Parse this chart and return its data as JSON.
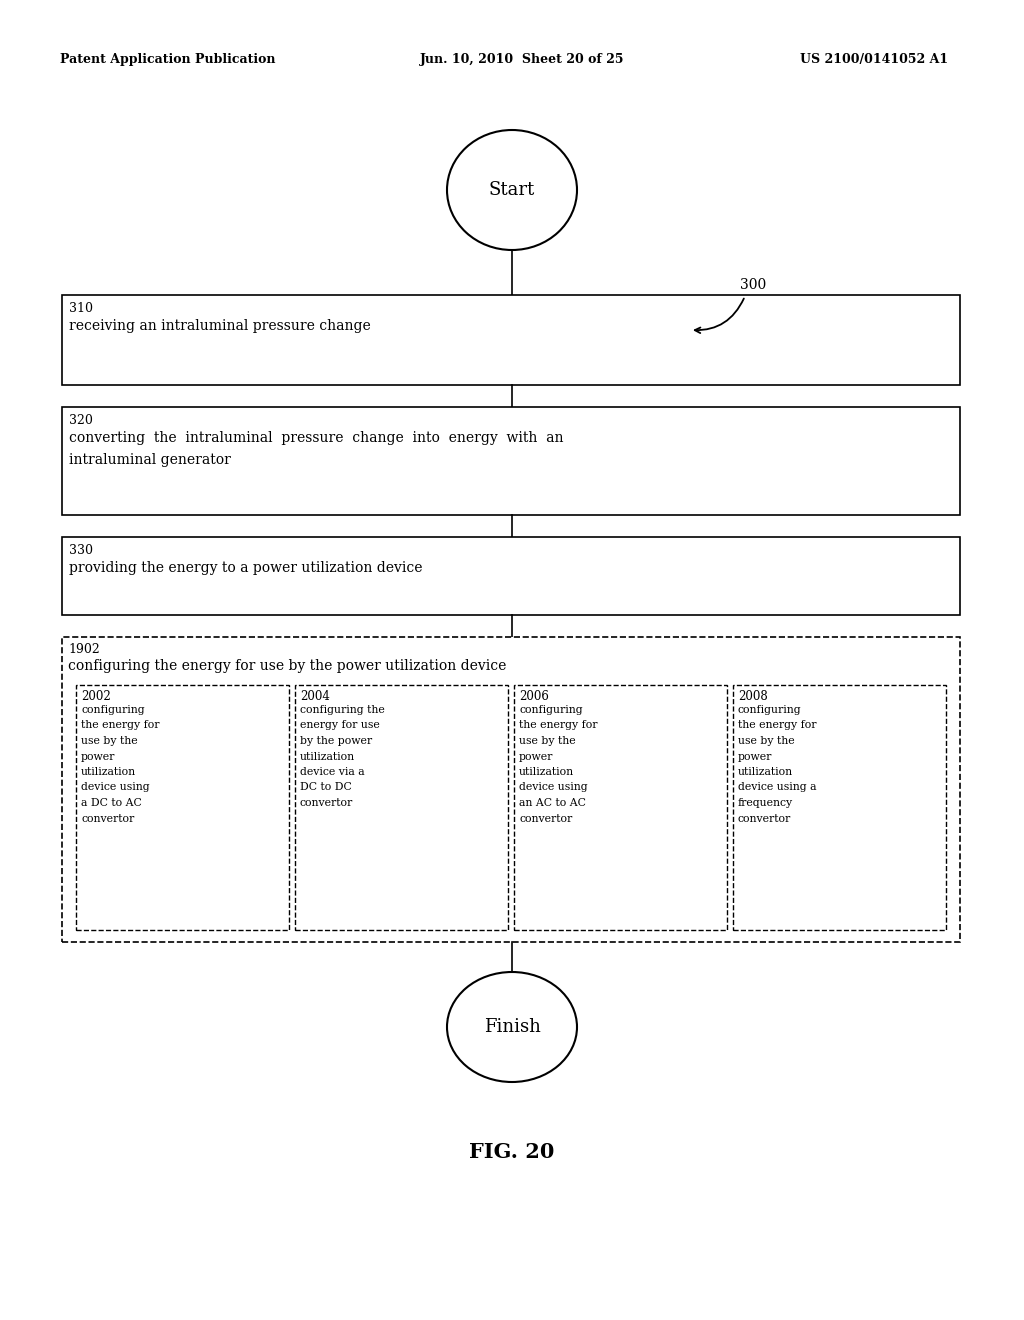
{
  "header_left": "Patent Application Publication",
  "header_center": "Jun. 10, 2010  Sheet 20 of 25",
  "header_right": "US 2100/0141052 A1",
  "figure_label": "FIG. 20",
  "diagram_label": "300",
  "start_label": "Start",
  "finish_label": "Finish",
  "box310_id": "310",
  "box310_text": "receiving an intraluminal pressure change",
  "box320_id": "320",
  "box320_line1": "converting  the  intraluminal  pressure  change  into  energy  with  an",
  "box320_line2": "intraluminal generator",
  "box330_id": "330",
  "box330_text": "providing the energy to a power utilization device",
  "box1902_id": "1902",
  "box1902_text": "configuring the energy for use by the power utilization device",
  "sub2002_id": "2002",
  "sub2002_lines": [
    "configuring",
    "the energy for",
    "use by the",
    "power",
    "utilization",
    "device using",
    "a DC to AC",
    "convertor"
  ],
  "sub2004_id": "2004",
  "sub2004_lines": [
    "configuring the",
    "energy for use",
    "by the power",
    "utilization",
    "device via a",
    "DC to DC",
    "convertor"
  ],
  "sub2006_id": "2006",
  "sub2006_lines": [
    "configuring",
    "the energy for",
    "use by the",
    "power",
    "utilization",
    "device using",
    "an AC to AC",
    "convertor"
  ],
  "sub2008_id": "2008",
  "sub2008_lines": [
    "configuring",
    "the energy for",
    "use by the",
    "power",
    "utilization",
    "device using a",
    "frequency",
    "convertor"
  ],
  "bg_color": "#ffffff",
  "line_color": "#000000",
  "text_color": "#000000"
}
